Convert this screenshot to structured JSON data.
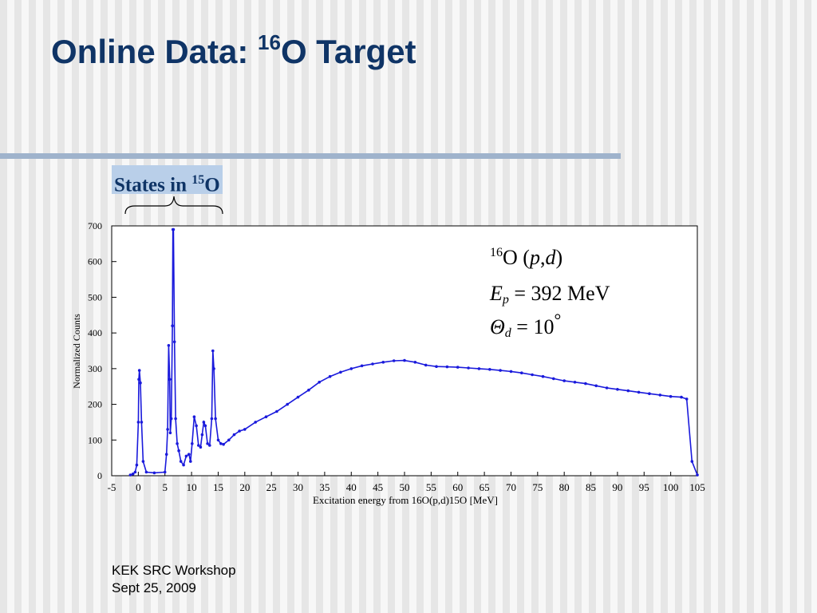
{
  "slide": {
    "title_prefix": "Online Data: ",
    "title_sup": "16",
    "title_suffix": "O Target",
    "states_label": "States in ",
    "states_sup": "15",
    "states_suffix": "O",
    "footer_line1": "KEK SRC Workshop",
    "footer_line2": "Sept 25, 2009"
  },
  "colors": {
    "title": "#0f3466",
    "rule": "#9fb3cc",
    "highlight_box": "#b9cfe9",
    "data": "#1a1adc"
  },
  "chart_data": {
    "type": "scatter",
    "title": "",
    "xlabel": "Excitation energy from 16O(p,d)15O [MeV]",
    "ylabel": "Normalized Counts",
    "xlim": [
      -5,
      105
    ],
    "ylim": [
      0,
      700
    ],
    "xticks": [
      "-5",
      "0",
      "5",
      "10",
      "15",
      "20",
      "25",
      "30",
      "35",
      "40",
      "45",
      "50",
      "55",
      "60",
      "65",
      "70",
      "75",
      "80",
      "85",
      "90",
      "95",
      "100",
      "105"
    ],
    "yticks": [
      "0",
      "100",
      "200",
      "300",
      "400",
      "500",
      "600",
      "700"
    ],
    "grid": false,
    "annotation": {
      "line1_sup": "16",
      "line1_main": "O (",
      "line1_p": "p",
      "line1_comma": ",",
      "line1_d": "d",
      "line1_close": ")",
      "line2_E": "E",
      "line2_sub": "p",
      "line2_value": " = 392 MeV",
      "line3_theta": "Θ",
      "line3_sub": "d",
      "line3_value": " = 10",
      "line3_deg": "°"
    },
    "series": [
      {
        "points": [
          [
            -1.5,
            2
          ],
          [
            -1,
            5
          ],
          [
            -0.6,
            10
          ],
          [
            -0.3,
            30
          ],
          [
            0,
            150
          ],
          [
            0.1,
            270
          ],
          [
            0.2,
            295
          ],
          [
            0.4,
            260
          ],
          [
            0.6,
            150
          ],
          [
            0.9,
            40
          ],
          [
            1.5,
            10
          ],
          [
            3,
            8
          ],
          [
            5,
            10
          ],
          [
            5.3,
            60
          ],
          [
            5.5,
            130
          ],
          [
            5.7,
            365
          ],
          [
            5.9,
            270
          ],
          [
            6.0,
            120
          ],
          [
            6.2,
            160
          ],
          [
            6.4,
            420
          ],
          [
            6.5,
            690
          ],
          [
            6.6,
            690
          ],
          [
            6.8,
            375
          ],
          [
            7.0,
            160
          ],
          [
            7.3,
            90
          ],
          [
            7.6,
            70
          ],
          [
            8,
            40
          ],
          [
            8.5,
            30
          ],
          [
            9.0,
            55
          ],
          [
            9.5,
            60
          ],
          [
            9.8,
            40
          ],
          [
            10.1,
            90
          ],
          [
            10.5,
            165
          ],
          [
            10.9,
            140
          ],
          [
            11.3,
            85
          ],
          [
            11.7,
            80
          ],
          [
            12,
            115
          ],
          [
            12.3,
            150
          ],
          [
            12.6,
            140
          ],
          [
            13,
            90
          ],
          [
            13.4,
            85
          ],
          [
            13.8,
            160
          ],
          [
            14.0,
            350
          ],
          [
            14.2,
            300
          ],
          [
            14.5,
            160
          ],
          [
            15,
            100
          ],
          [
            15.5,
            90
          ],
          [
            16,
            88
          ],
          [
            17,
            100
          ],
          [
            18,
            115
          ],
          [
            19,
            125
          ],
          [
            20,
            130
          ],
          [
            22,
            150
          ],
          [
            24,
            165
          ],
          [
            26,
            180
          ],
          [
            28,
            200
          ],
          [
            30,
            220
          ],
          [
            32,
            240
          ],
          [
            34,
            262
          ],
          [
            36,
            278
          ],
          [
            38,
            290
          ],
          [
            40,
            300
          ],
          [
            42,
            308
          ],
          [
            44,
            313
          ],
          [
            46,
            318
          ],
          [
            48,
            322
          ],
          [
            50,
            323
          ],
          [
            52,
            318
          ],
          [
            54,
            310
          ],
          [
            56,
            306
          ],
          [
            58,
            305
          ],
          [
            60,
            304
          ],
          [
            62,
            302
          ],
          [
            64,
            300
          ],
          [
            66,
            298
          ],
          [
            68,
            295
          ],
          [
            70,
            292
          ],
          [
            72,
            288
          ],
          [
            74,
            283
          ],
          [
            76,
            278
          ],
          [
            78,
            272
          ],
          [
            80,
            266
          ],
          [
            82,
            262
          ],
          [
            84,
            258
          ],
          [
            86,
            252
          ],
          [
            88,
            246
          ],
          [
            90,
            242
          ],
          [
            92,
            238
          ],
          [
            94,
            234
          ],
          [
            96,
            230
          ],
          [
            98,
            226
          ],
          [
            100,
            222
          ],
          [
            102,
            220
          ],
          [
            103,
            215
          ],
          [
            104,
            40
          ],
          [
            105,
            2
          ]
        ]
      }
    ]
  }
}
